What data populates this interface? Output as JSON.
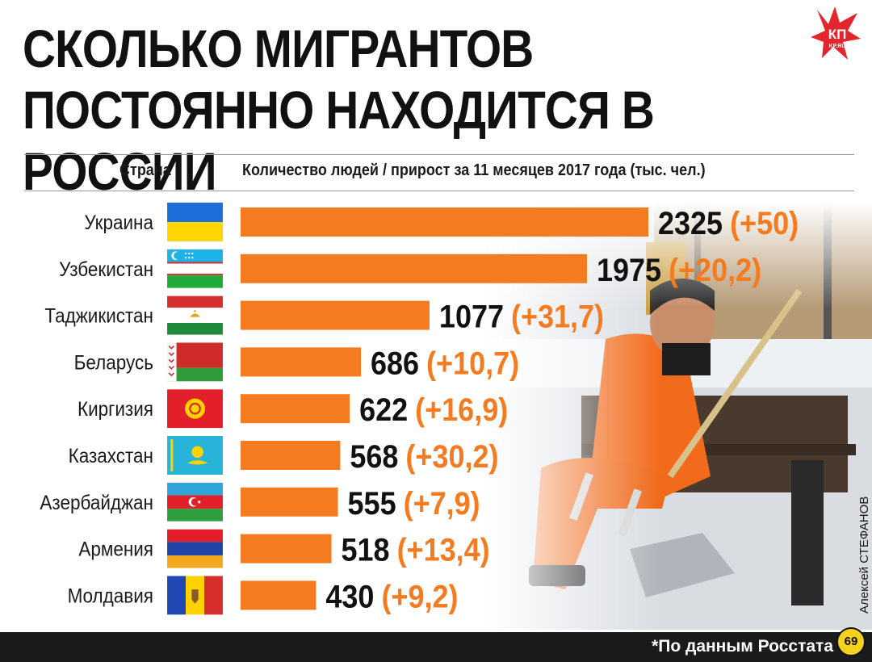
{
  "title_lines": [
    "Сколько мигрантов",
    "постоянно находится в России"
  ],
  "logo": {
    "main": "КП",
    "sub": "KP.RU"
  },
  "columns": {
    "country": "Страна",
    "value": "Количество людей / прирост за 11 месяцев 2017 года (тыс. чел.)"
  },
  "photo_credit": "Алексей СТЕФАНОВ",
  "footer": {
    "source": "*По данным Росстата",
    "badge": "69"
  },
  "colors": {
    "bar": "#f47b20",
    "growth": "#f47b20",
    "value": "#111111"
  },
  "chart_data": {
    "type": "bar",
    "orientation": "horizontal",
    "title": "Сколько мигрантов постоянно находится в России",
    "xlabel": "Количество людей / прирост за 11 месяцев 2017 года (тыс. чел.)",
    "ylabel": "Страна",
    "xlim": [
      0,
      2325
    ],
    "grid": false,
    "categories": [
      "Украина",
      "Узбекистан",
      "Таджикистан",
      "Беларусь",
      "Киргизия",
      "Казахстан",
      "Азербайджан",
      "Армения",
      "Молдавия"
    ],
    "values": [
      2325,
      1975,
      1077,
      686,
      622,
      568,
      555,
      518,
      430
    ],
    "value_labels": [
      "2325",
      "1975",
      "1077",
      "686",
      "622",
      "568",
      "555",
      "518",
      "430"
    ],
    "growth_labels": [
      "(+50)",
      "(+20,2)",
      "(+31,7)",
      "(+10,7)",
      "(+16,9)",
      "(+30,2)",
      "(+7,9)",
      "(+13,4)",
      "(+9,2)"
    ],
    "growth": [
      50,
      20.2,
      31.7,
      10.7,
      16.9,
      30.2,
      7.9,
      13.4,
      9.2
    ],
    "flags": [
      "ukraine-flag",
      "uzbekistan-flag",
      "tajikistan-flag",
      "belarus-flag",
      "kyrgyzstan-flag",
      "kazakhstan-flag",
      "azerbaijan-flag",
      "armenia-flag",
      "moldova-flag"
    ]
  }
}
